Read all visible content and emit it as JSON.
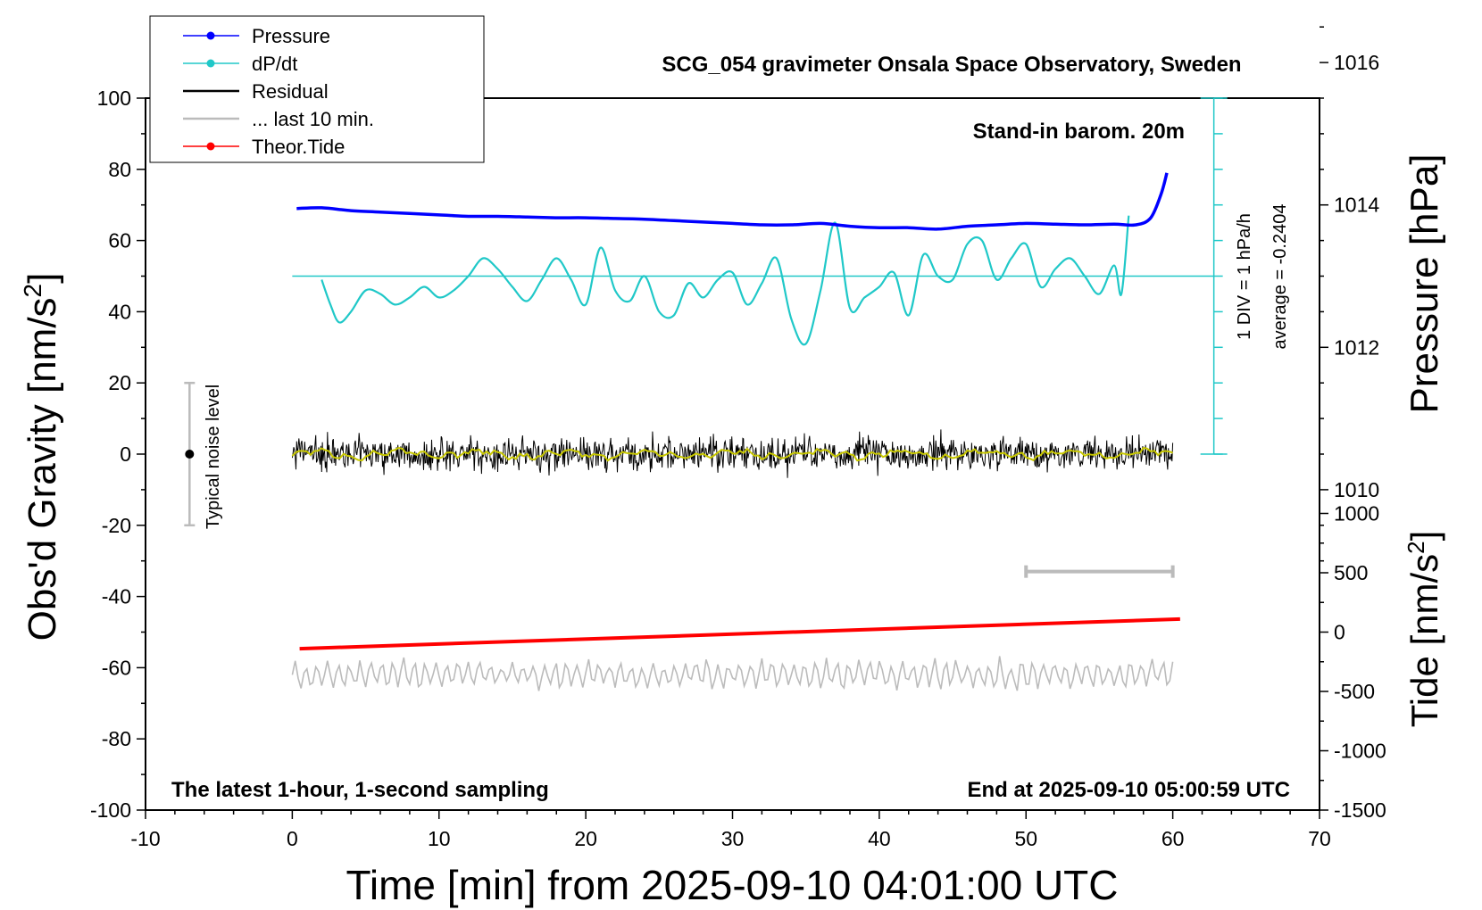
{
  "chart_data": {
    "type": "line",
    "title": "SCG_054 gravimeter Onsala Space Observatory, Sweden",
    "xlabel": "Time [min] from 2025-09-10 04:01:00 UTC",
    "ylabel_left": "Obs'd Gravity [nm/s",
    "ylabel_left_sup": "2",
    "ylabel_left_end": "]",
    "ylabel_right_pressure": "Pressure [hPa]",
    "ylabel_right_tide": "Tide [nm/s",
    "ylabel_right_tide_sup": "2",
    "ylabel_right_tide_end": "]",
    "xlim": [
      -10,
      70
    ],
    "ylim_left": [
      -100,
      100
    ],
    "pressure_ylim": [
      1008,
      1018
    ],
    "tide_ylim": [
      -1500,
      1500
    ],
    "xticks": [
      -10,
      0,
      10,
      20,
      30,
      40,
      50,
      60,
      70
    ],
    "yticks_left": [
      -100,
      -80,
      -60,
      -40,
      -20,
      0,
      20,
      40,
      60,
      80,
      100
    ],
    "yticks_pressure": [
      1010,
      1012,
      1014,
      1016
    ],
    "yticks_tide": [
      -1500,
      -1000,
      -500,
      0,
      500,
      1000
    ],
    "notes": {
      "stand_in": "Stand-in barom. 20m",
      "bottom_left": "The latest 1-hour, 1-second sampling",
      "bottom_right": "End at 2025-09-10 05:00:59 UTC",
      "div_label": "1 DIV = 1 hPa/h",
      "average_label": "average = -0.2404",
      "noise_label": "Typical noise level"
    },
    "legend": [
      {
        "label": "Pressure",
        "color": "#0000ff",
        "marker": true
      },
      {
        "label": "dP/dt",
        "color": "#20c8c8",
        "marker": true
      },
      {
        "label": "Residual",
        "color": "#000000",
        "marker": false
      },
      {
        "label": "... last 10 min.",
        "color": "#bbbbbb",
        "marker": false
      },
      {
        "label": "Theor.Tide",
        "color": "#ff0000",
        "marker": true
      }
    ],
    "colors": {
      "pressure": "#0000ff",
      "dpdt": "#20c8c8",
      "residual": "#000000",
      "residual_smooth": "#c8c800",
      "last10": "#bbbbbb",
      "tide": "#ff0000",
      "noise_bar": "#bbbbbb"
    },
    "series": {
      "pressure_hPa": {
        "x": [
          0.3,
          2,
          4,
          6,
          8,
          10,
          12,
          14,
          16,
          18,
          20,
          22,
          24,
          26,
          28,
          30,
          32,
          34,
          36,
          38,
          40,
          42,
          44,
          46,
          48,
          50,
          52,
          54,
          56,
          57.5,
          58.5,
          59.2,
          59.6
        ],
        "y": [
          1013.95,
          1013.96,
          1013.92,
          1013.9,
          1013.88,
          1013.86,
          1013.84,
          1013.84,
          1013.83,
          1013.82,
          1013.82,
          1013.81,
          1013.8,
          1013.78,
          1013.76,
          1013.74,
          1013.72,
          1013.72,
          1013.74,
          1013.7,
          1013.68,
          1013.68,
          1013.66,
          1013.7,
          1013.72,
          1013.74,
          1013.73,
          1013.72,
          1013.73,
          1013.72,
          1013.82,
          1014.15,
          1014.45
        ]
      },
      "dpdt_gravity_units": {
        "x": [
          2,
          2.6,
          3.2,
          4,
          5,
          6,
          7,
          8,
          9,
          10,
          11,
          12,
          13,
          14,
          15,
          16,
          17,
          18,
          19,
          20,
          21,
          22,
          23,
          24,
          25,
          26,
          27,
          28,
          29,
          30,
          31,
          32,
          33,
          34,
          35,
          36,
          37,
          38,
          39,
          40,
          41,
          42,
          43,
          44,
          45,
          46,
          47,
          48,
          49,
          50,
          51,
          52,
          53,
          54,
          55,
          56,
          56.5,
          57
        ],
        "y": [
          49,
          42,
          37,
          40,
          46,
          45,
          42,
          44,
          47,
          44,
          46,
          50,
          55,
          52,
          47,
          43,
          49,
          55,
          49,
          42,
          58,
          46,
          43,
          50,
          40,
          39,
          48,
          44,
          49,
          51,
          42,
          48,
          55,
          38,
          31,
          46,
          65,
          41,
          44,
          47,
          51,
          39,
          56,
          50,
          49,
          59,
          60,
          49,
          55,
          59,
          47,
          52,
          55,
          50,
          45,
          53,
          45,
          67
        ]
      },
      "tide_nm_s2": {
        "x": [
          0.5,
          60.5
        ],
        "y": [
          -140,
          110
        ]
      },
      "dpdt_average_line": -0.2404
    }
  }
}
